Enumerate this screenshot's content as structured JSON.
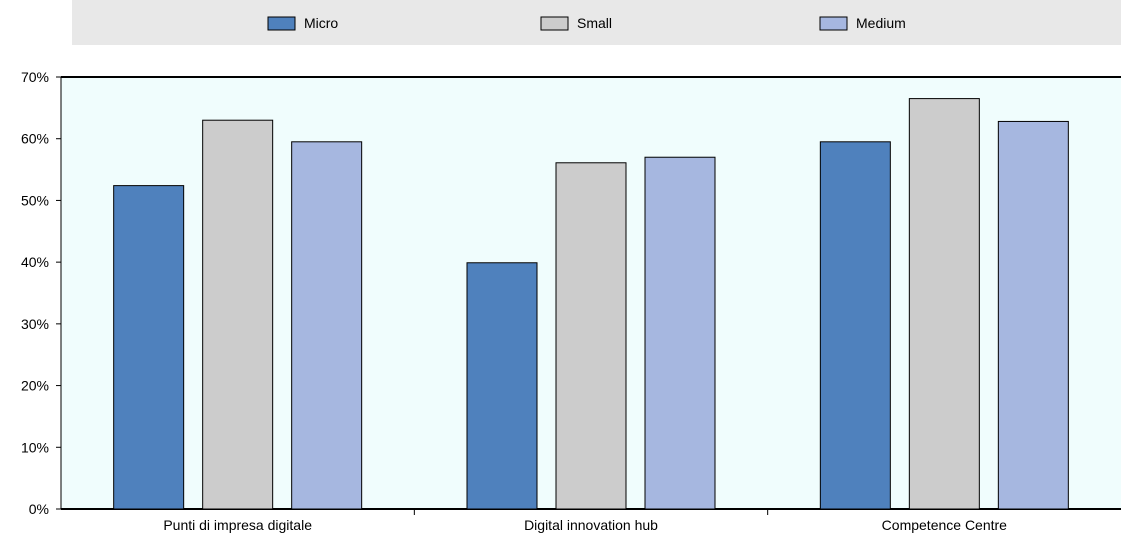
{
  "chart_data": {
    "type": "bar",
    "categories": [
      "Punti di impresa digitale",
      "Digital innovation hub",
      "Competence Centre"
    ],
    "series": [
      {
        "name": "Micro",
        "color": "#4f81bd",
        "values": [
          52.4,
          39.9,
          59.5
        ]
      },
      {
        "name": "Small",
        "color": "#cccccc",
        "values": [
          63.0,
          56.1,
          66.5
        ]
      },
      {
        "name": "Medium",
        "color": "#a6b7e0",
        "values": [
          59.5,
          57.0,
          62.8
        ]
      }
    ],
    "y_ticks": [
      "0%",
      "10%",
      "20%",
      "30%",
      "40%",
      "50%",
      "60%",
      "70%"
    ],
    "ylim": [
      0,
      70
    ],
    "legend_position": "top",
    "grid": false,
    "plot_background": "#f0fdfd",
    "legend_background": "#e8e8e8"
  }
}
